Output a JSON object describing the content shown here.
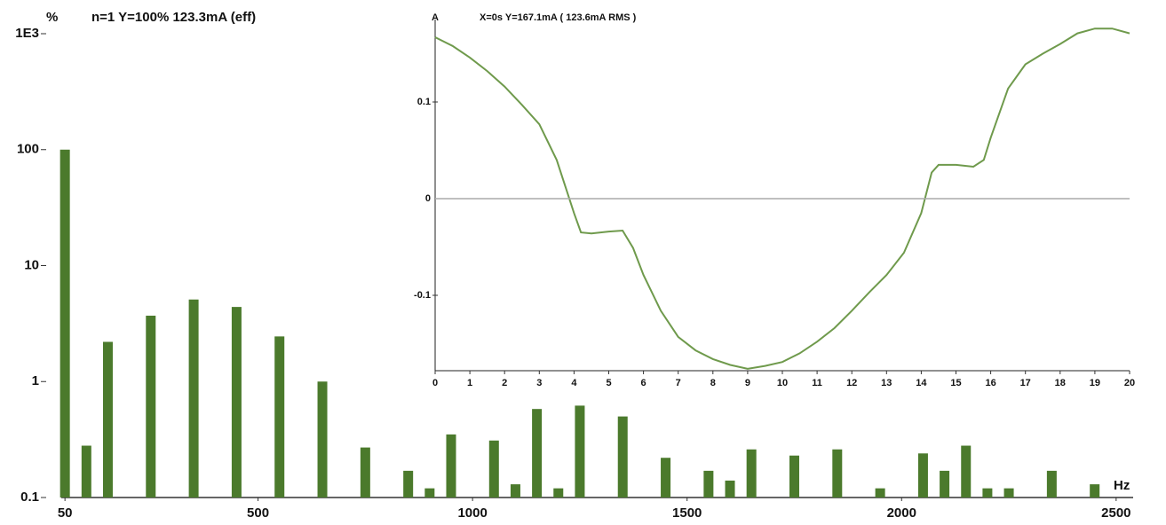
{
  "chart_data": [
    {
      "type": "bar",
      "ylabel": "%",
      "title": "n=1  Y=100%  123.3mA (eff)",
      "xlabel": "Hz",
      "log_y": true,
      "color": "#4b7a2c",
      "x": [
        50,
        100,
        150,
        250,
        350,
        450,
        550,
        650,
        750,
        850,
        900,
        950,
        1050,
        1100,
        1150,
        1200,
        1250,
        1350,
        1450,
        1550,
        1600,
        1650,
        1750,
        1850,
        1950,
        2050,
        2100,
        2150,
        2200,
        2250,
        2350,
        2450
      ],
      "values": [
        100,
        0.28,
        2.2,
        3.7,
        5.1,
        4.4,
        2.45,
        1.0,
        0.27,
        0.17,
        0.12,
        0.35,
        0.31,
        0.13,
        0.58,
        0.12,
        0.62,
        0.5,
        0.22,
        0.17,
        0.14,
        0.26,
        0.23,
        0.26,
        0.12,
        0.24,
        0.17,
        0.28,
        0.12,
        0.12,
        0.17,
        0.13
      ],
      "xlim": [
        0,
        2550
      ],
      "xticks": [
        50,
        500,
        1000,
        1500,
        2000,
        2500
      ],
      "ylim": [
        0.1,
        1000
      ],
      "yticks": [
        {
          "value": 1000,
          "label": "1E3"
        },
        100,
        10,
        1,
        0.1
      ]
    },
    {
      "type": "line",
      "ylabel": "A",
      "title": "X=0s Y=167.1mA ( 123.6mA RMS )",
      "color": "#6f9a4c",
      "x": [
        0,
        0.5,
        1,
        1.5,
        2,
        2.5,
        3,
        3.5,
        4,
        4.2,
        4.5,
        5,
        5.4,
        5.7,
        6,
        6.5,
        7,
        7.5,
        8,
        8.5,
        9,
        9.5,
        10,
        10.5,
        11,
        11.5,
        12,
        12.5,
        13,
        13.5,
        14,
        14.3,
        14.5,
        15,
        15.5,
        15.8,
        16,
        16.5,
        17,
        17.5,
        18,
        18.5,
        19,
        19.5,
        20
      ],
      "values": [
        0.167,
        0.158,
        0.146,
        0.132,
        0.116,
        0.097,
        0.077,
        0.04,
        -0.015,
        -0.035,
        -0.036,
        -0.034,
        -0.033,
        -0.051,
        -0.079,
        -0.116,
        -0.143,
        -0.157,
        -0.166,
        -0.172,
        -0.176,
        -0.173,
        -0.169,
        -0.16,
        -0.148,
        -0.134,
        -0.116,
        -0.097,
        -0.079,
        -0.056,
        -0.015,
        0.027,
        0.035,
        0.035,
        0.033,
        0.04,
        0.063,
        0.114,
        0.139,
        0.15,
        0.16,
        0.171,
        0.176,
        0.176,
        0.171
      ],
      "xlim": [
        0,
        20
      ],
      "xticks": [
        0,
        1,
        2,
        3,
        4,
        5,
        6,
        7,
        8,
        9,
        10,
        11,
        12,
        13,
        14,
        15,
        16,
        17,
        18,
        19,
        20
      ],
      "ylim": [
        -0.178,
        0.178
      ],
      "yticks": [
        0.1,
        0,
        -0.1
      ]
    }
  ]
}
